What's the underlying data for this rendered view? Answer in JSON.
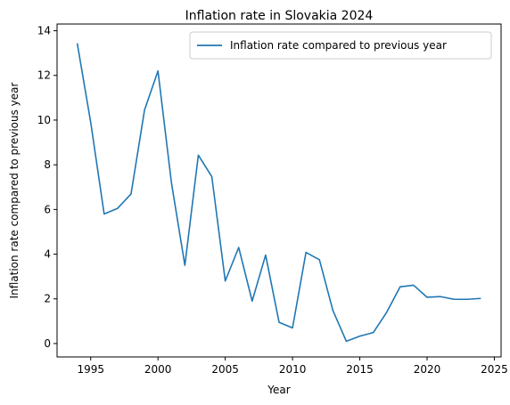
{
  "chart_data": {
    "type": "line",
    "title": "Inflation rate in Slovakia 2024",
    "xlabel": "Year",
    "ylabel": "Inflation rate compared to previous year",
    "xlim": [
      1992.5,
      2025.5
    ],
    "ylim": [
      -0.6,
      14.3
    ],
    "xticks": [
      1995,
      2000,
      2005,
      2010,
      2015,
      2020,
      2025
    ],
    "yticks": [
      0,
      2,
      4,
      6,
      8,
      10,
      12,
      14
    ],
    "grid": false,
    "legend_position": "top-right",
    "series": [
      {
        "name": "Inflation rate compared to previous year",
        "color": "#1f77b4",
        "x": [
          1994,
          1995,
          1996,
          1997,
          1998,
          1999,
          2000,
          2001,
          2002,
          2003,
          2004,
          2005,
          2006,
          2007,
          2008,
          2009,
          2010,
          2011,
          2012,
          2013,
          2014,
          2015,
          2016,
          2017,
          2018,
          2019,
          2020,
          2021,
          2022,
          2023,
          2024
        ],
        "y": [
          13.44,
          9.9,
          5.8,
          6.05,
          6.7,
          10.45,
          12.2,
          7.2,
          3.5,
          8.43,
          7.47,
          2.8,
          4.3,
          1.9,
          3.96,
          0.95,
          0.7,
          4.08,
          3.75,
          1.48,
          0.1,
          0.33,
          0.49,
          1.4,
          2.54,
          2.61,
          2.07,
          2.1,
          1.98,
          1.98,
          2.02
        ]
      }
    ]
  }
}
